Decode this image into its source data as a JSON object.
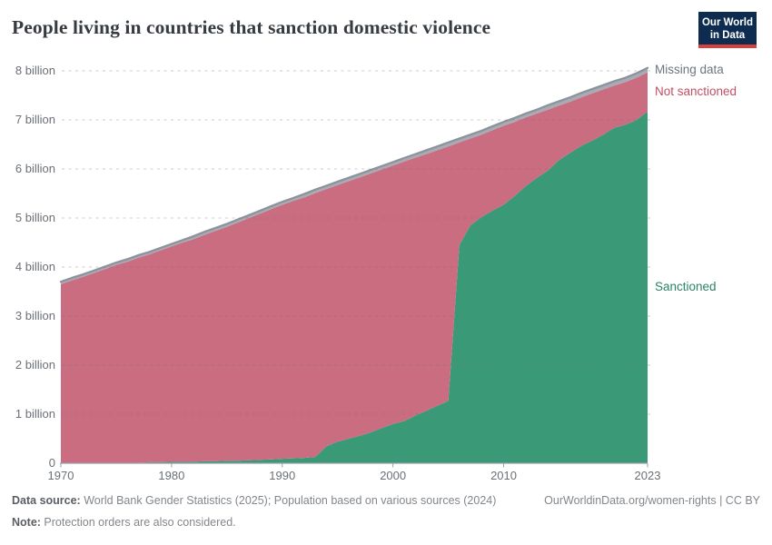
{
  "header": {
    "title": "People living in countries that sanction domestic violence",
    "logo": {
      "line1": "Our World",
      "line2": "in Data"
    }
  },
  "chart_data": {
    "type": "area",
    "stacked": true,
    "title": "People living in countries that sanction domestic violence",
    "xlabel": "",
    "ylabel": "",
    "xlim": [
      1970,
      2023
    ],
    "ylim": [
      0,
      8
    ],
    "grid": true,
    "gridline_style": "dashed",
    "legend_position": "right",
    "unit": "billion people",
    "years": [
      1970,
      1971,
      1972,
      1973,
      1974,
      1975,
      1976,
      1977,
      1978,
      1979,
      1980,
      1981,
      1982,
      1983,
      1984,
      1985,
      1986,
      1987,
      1988,
      1989,
      1990,
      1991,
      1992,
      1993,
      1994,
      1995,
      1996,
      1997,
      1998,
      1999,
      2000,
      2001,
      2002,
      2003,
      2004,
      2005,
      2006,
      2007,
      2008,
      2009,
      2010,
      2011,
      2012,
      2013,
      2014,
      2015,
      2016,
      2017,
      2018,
      2019,
      2020,
      2021,
      2022,
      2023
    ],
    "series": [
      {
        "name": "Sanctioned",
        "fill": "#3a9a78",
        "label_color": "#2c8465",
        "values": [
          0,
          0,
          0,
          0,
          0,
          0,
          0.01,
          0.01,
          0.02,
          0.02,
          0.03,
          0.03,
          0.03,
          0.04,
          0.04,
          0.05,
          0.05,
          0.06,
          0.07,
          0.08,
          0.09,
          0.1,
          0.11,
          0.13,
          0.35,
          0.44,
          0.5,
          0.56,
          0.63,
          0.72,
          0.8,
          0.86,
          0.97,
          1.07,
          1.17,
          1.27,
          4.45,
          4.85,
          5.02,
          5.15,
          5.27,
          5.45,
          5.65,
          5.82,
          5.97,
          6.18,
          6.33,
          6.47,
          6.58,
          6.7,
          6.84,
          6.9,
          7.0,
          7.17
        ]
      },
      {
        "name": "Not sanctioned",
        "fill": "#ca6d80",
        "label_color": "#c15065",
        "values": [
          3.65,
          3.73,
          3.8,
          3.88,
          3.96,
          4.04,
          4.1,
          4.18,
          4.24,
          4.32,
          4.39,
          4.47,
          4.54,
          4.62,
          4.7,
          4.77,
          4.86,
          4.94,
          5.02,
          5.1,
          5.18,
          5.25,
          5.31,
          5.38,
          5.24,
          5.23,
          5.25,
          5.27,
          5.28,
          5.27,
          5.27,
          5.29,
          5.26,
          5.23,
          5.21,
          5.19,
          2.09,
          1.77,
          1.68,
          1.64,
          1.61,
          1.51,
          1.4,
          1.31,
          1.24,
          1.11,
          1.04,
          0.99,
          0.96,
          0.92,
          0.86,
          0.87,
          0.86,
          0.8
        ]
      },
      {
        "name": "Missing data",
        "fill": "#a6abb4",
        "label_color": "#6e7581",
        "edge_color": "#8d939c",
        "values": [
          0.05,
          0.05,
          0.05,
          0.05,
          0.05,
          0.05,
          0.05,
          0.05,
          0.05,
          0.05,
          0.05,
          0.05,
          0.06,
          0.06,
          0.06,
          0.06,
          0.06,
          0.06,
          0.06,
          0.06,
          0.06,
          0.06,
          0.07,
          0.07,
          0.07,
          0.07,
          0.07,
          0.07,
          0.07,
          0.07,
          0.07,
          0.07,
          0.07,
          0.08,
          0.08,
          0.08,
          0.08,
          0.08,
          0.08,
          0.08,
          0.08,
          0.08,
          0.08,
          0.08,
          0.09,
          0.09,
          0.09,
          0.09,
          0.09,
          0.09,
          0.09,
          0.09,
          0.09,
          0.09
        ]
      }
    ],
    "yticks": [
      {
        "value": 0,
        "label": "0"
      },
      {
        "value": 1,
        "label": "1 billion"
      },
      {
        "value": 2,
        "label": "2 billion"
      },
      {
        "value": 3,
        "label": "3 billion"
      },
      {
        "value": 4,
        "label": "4 billion"
      },
      {
        "value": 5,
        "label": "5 billion"
      },
      {
        "value": 6,
        "label": "6 billion"
      },
      {
        "value": 7,
        "label": "7 billion"
      },
      {
        "value": 8,
        "label": "8 billion"
      }
    ],
    "xticks": [
      {
        "value": 1970,
        "label": "1970"
      },
      {
        "value": 1980,
        "label": "1980"
      },
      {
        "value": 1990,
        "label": "1990"
      },
      {
        "value": 2000,
        "label": "2000"
      },
      {
        "value": 2010,
        "label": "2010"
      },
      {
        "value": 2023,
        "label": "2023"
      }
    ]
  },
  "footer": {
    "data_source_label": "Data source:",
    "data_source_text": " World Bank Gender Statistics (2025); Population based on various sources (2024)",
    "note_label": "Note:",
    "note_text": " Protection orders are also considered.",
    "link": "OurWorldinData.org/women-rights | CC BY"
  }
}
